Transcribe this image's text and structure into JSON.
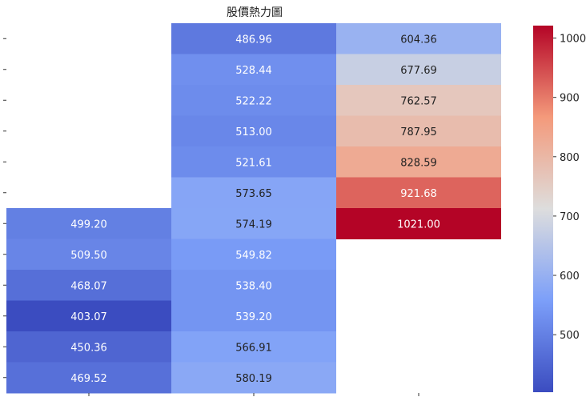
{
  "chart_data": {
    "type": "heatmap",
    "title": "股價熱力圖",
    "xlabel": "",
    "ylabel": "",
    "columns": 3,
    "rows": 12,
    "values": [
      [
        null,
        486.96,
        604.36
      ],
      [
        null,
        528.44,
        677.69
      ],
      [
        null,
        522.22,
        762.57
      ],
      [
        null,
        513.0,
        787.95
      ],
      [
        null,
        521.61,
        828.59
      ],
      [
        null,
        573.65,
        921.68
      ],
      [
        499.2,
        574.19,
        1021.0
      ],
      [
        509.5,
        549.82,
        null
      ],
      [
        468.07,
        538.4,
        null
      ],
      [
        403.07,
        539.2,
        null
      ],
      [
        450.36,
        566.91,
        null
      ],
      [
        469.52,
        580.19,
        null
      ]
    ],
    "labels": [
      [
        null,
        "486.96",
        "604.36"
      ],
      [
        null,
        "528.44",
        "677.69"
      ],
      [
        null,
        "522.22",
        "762.57"
      ],
      [
        null,
        "513.00",
        "787.95"
      ],
      [
        null,
        "521.61",
        "828.59"
      ],
      [
        null,
        "573.65",
        "921.68"
      ],
      [
        "499.20",
        "574.19",
        "1021.00"
      ],
      [
        "509.50",
        "549.82",
        null
      ],
      [
        "468.07",
        "538.40",
        null
      ],
      [
        "403.07",
        "539.20",
        null
      ],
      [
        "450.36",
        "566.91",
        null
      ],
      [
        "469.52",
        "580.19",
        null
      ]
    ],
    "colorbar": {
      "vmin": 403.07,
      "vmax": 1021.0,
      "colormap": "coolwarm",
      "ticks": [
        500,
        600,
        700,
        800,
        900,
        1000
      ],
      "tick_labels": [
        "500",
        "600",
        "700",
        "800",
        "900",
        "1000"
      ]
    },
    "grid": false,
    "colors": {
      "low": "#3b4cc0",
      "mid": "#dddddd",
      "high": "#b40426",
      "text_dark": "#222222",
      "text_light": "#ffffff"
    }
  }
}
